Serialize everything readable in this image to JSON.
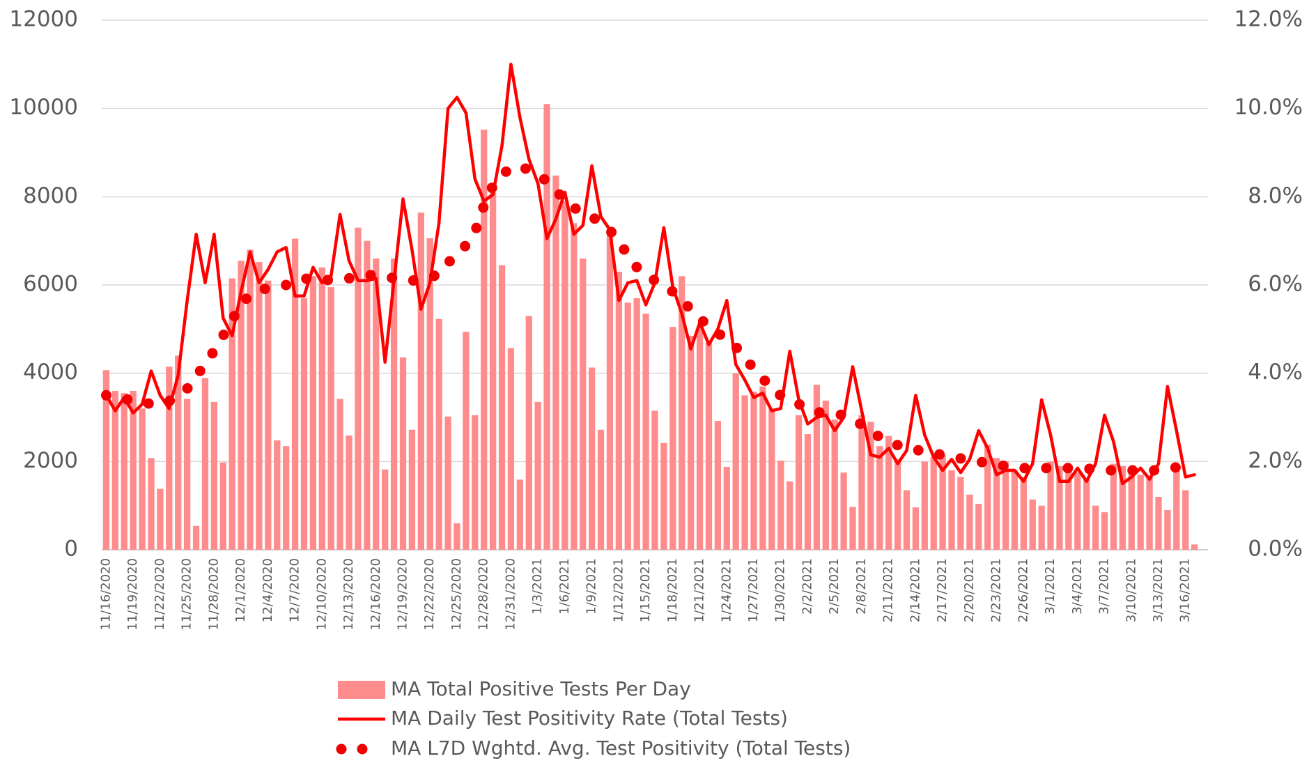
{
  "chart_data": {
    "type": "combo",
    "categories": [
      "11/16/2020",
      null,
      null,
      "11/19/2020",
      null,
      null,
      "11/22/2020",
      null,
      null,
      "11/25/2020",
      null,
      null,
      "11/28/2020",
      null,
      null,
      "12/1/2020",
      null,
      null,
      "12/4/2020",
      null,
      null,
      "12/7/2020",
      null,
      null,
      "12/10/2020",
      null,
      null,
      "12/13/2020",
      null,
      null,
      "12/16/2020",
      null,
      null,
      "12/19/2020",
      null,
      null,
      "12/22/2020",
      null,
      null,
      "12/25/2020",
      null,
      null,
      "12/28/2020",
      null,
      null,
      "12/31/2020",
      null,
      null,
      "1/3/2021",
      null,
      null,
      "1/6/2021",
      null,
      null,
      "1/9/2021",
      null,
      null,
      "1/12/2021",
      null,
      null,
      "1/15/2021",
      null,
      null,
      "1/18/2021",
      null,
      null,
      "1/21/2021",
      null,
      null,
      "1/24/2021",
      null,
      null,
      "1/27/2021",
      null,
      null,
      "1/30/2021",
      null,
      null,
      "2/2/2021",
      null,
      null,
      "2/5/2021",
      null,
      null,
      "2/8/2021",
      null,
      null,
      "2/11/2021",
      null,
      null,
      "2/14/2021",
      null,
      null,
      "2/17/2021",
      null,
      null,
      "2/20/2021",
      null,
      null,
      "2/23/2021",
      null,
      null,
      "2/26/2021",
      null,
      null,
      "3/1/2021",
      null,
      null,
      "3/4/2021",
      null,
      null,
      "3/7/2021",
      null,
      null,
      "3/10/2021",
      null,
      null,
      "3/13/2021",
      null,
      null,
      "3/16/2021",
      null,
      null
    ],
    "series": [
      {
        "name": "MA Total Positive Tests Per Day",
        "type": "bar",
        "color": "#ff8c8c",
        "values": [
          4070,
          3600,
          3550,
          3600,
          3200,
          2080,
          1380,
          4150,
          4400,
          3420,
          540,
          3890,
          3350,
          1980,
          6150,
          6550,
          6800,
          6520,
          6100,
          2480,
          2350,
          7050,
          5700,
          6200,
          6400,
          5950,
          3420,
          2590,
          7300,
          7000,
          6600,
          1820,
          6600,
          4360,
          2720,
          7640,
          7060,
          5230,
          3020,
          600,
          4940,
          3050,
          9520,
          8100,
          6450,
          4570,
          1590,
          5300,
          3350,
          10100,
          8480,
          7900,
          7400,
          6600,
          4130,
          2720,
          7200,
          6300,
          5600,
          5700,
          5350,
          3150,
          2420,
          5050,
          6200,
          4850,
          5050,
          4700,
          2920,
          1880,
          4000,
          3500,
          3580,
          3700,
          3200,
          2020,
          1550,
          3050,
          2620,
          3740,
          3380,
          2950,
          1750,
          970,
          3050,
          2900,
          2350,
          2580,
          2050,
          1350,
          960,
          2000,
          2100,
          2150,
          1800,
          1650,
          1250,
          1040,
          2380,
          2080,
          2000,
          1800,
          1650,
          1140,
          1000,
          2000,
          1900,
          1800,
          1750,
          1600,
          1000,
          850,
          1950,
          1900,
          1800,
          1700,
          1650,
          1200,
          900,
          1800,
          1350,
          120,
          null
        ]
      },
      {
        "name": "MA Daily Test Positivity Rate (Total Tests)",
        "type": "line",
        "axis": "y2",
        "color": "#ff0000",
        "values": [
          3.5,
          3.15,
          3.45,
          3.1,
          3.3,
          4.05,
          3.5,
          3.2,
          3.95,
          5.65,
          7.15,
          6.05,
          7.15,
          5.25,
          4.85,
          5.85,
          6.75,
          6.05,
          6.35,
          6.75,
          6.85,
          5.75,
          5.75,
          6.4,
          6.05,
          6.2,
          7.6,
          6.55,
          6.1,
          6.1,
          6.15,
          4.25,
          6.1,
          7.95,
          6.8,
          5.45,
          6.05,
          7.4,
          10.0,
          10.25,
          9.9,
          8.4,
          7.9,
          8.05,
          9.15,
          11.0,
          9.8,
          8.85,
          8.3,
          7.05,
          7.5,
          8.1,
          7.15,
          7.35,
          8.7,
          7.55,
          7.25,
          5.65,
          6.05,
          6.1,
          5.55,
          6.05,
          7.3,
          5.95,
          5.35,
          4.55,
          5.15,
          4.65,
          5.0,
          5.65,
          4.2,
          3.85,
          3.45,
          3.55,
          3.15,
          3.2,
          4.5,
          3.4,
          2.85,
          3.0,
          3.05,
          2.7,
          3.0,
          4.15,
          3.15,
          2.15,
          2.1,
          2.3,
          1.95,
          2.25,
          3.5,
          2.6,
          2.1,
          1.8,
          2.05,
          1.75,
          2.05,
          2.7,
          2.3,
          1.7,
          1.8,
          1.8,
          1.55,
          1.95,
          3.4,
          2.6,
          1.55,
          1.55,
          1.85,
          1.55,
          1.95,
          3.05,
          2.45,
          1.5,
          1.65,
          1.85,
          1.6,
          1.95,
          3.7,
          2.7,
          1.65,
          1.7,
          null
        ]
      },
      {
        "name": "MA L7D Wghtd. Avg. Test Positivity (Total Tests)",
        "type": "line",
        "axis": "y2",
        "line_style": "dotted",
        "color": "#f00000",
        "values": [
          3.5,
          3.45,
          3.42,
          3.38,
          3.35,
          3.3,
          3.33,
          3.37,
          3.5,
          3.65,
          3.9,
          4.25,
          4.5,
          4.85,
          5.2,
          5.6,
          5.75,
          5.9,
          5.92,
          5.95,
          6.0,
          6.1,
          6.15,
          6.12,
          6.1,
          6.12,
          6.13,
          6.15,
          6.18,
          6.22,
          6.23,
          6.2,
          6.15,
          6.12,
          6.1,
          6.12,
          6.17,
          6.25,
          6.5,
          6.7,
          6.9,
          7.2,
          7.8,
          8.25,
          8.5,
          8.65,
          8.7,
          8.6,
          8.5,
          8.35,
          8.15,
          7.9,
          7.75,
          7.65,
          7.55,
          7.4,
          7.25,
          6.95,
          6.7,
          6.4,
          6.25,
          6.1,
          5.95,
          5.85,
          5.65,
          5.45,
          5.25,
          5.05,
          4.9,
          4.8,
          4.6,
          4.35,
          4.1,
          3.9,
          3.6,
          3.5,
          3.4,
          3.3,
          3.22,
          3.12,
          3.1,
          3.08,
          3.05,
          2.98,
          2.83,
          2.7,
          2.55,
          2.45,
          2.37,
          2.3,
          2.27,
          2.22,
          2.18,
          2.15,
          2.1,
          2.07,
          2.03,
          2.0,
          1.96,
          1.92,
          1.9,
          1.88,
          1.85,
          1.85,
          1.85,
          1.85,
          1.85,
          1.85,
          1.85,
          1.84,
          1.82,
          1.8,
          1.8,
          1.8,
          1.8,
          1.8,
          1.8,
          1.8,
          1.83,
          1.87,
          1.9,
          1.95,
          null
        ]
      }
    ],
    "ylim": [
      0,
      12000
    ],
    "yticks": [
      0,
      2000,
      4000,
      6000,
      8000,
      10000,
      12000
    ],
    "y2lim": [
      0,
      12
    ],
    "y2ticks": [
      {
        "value": 0,
        "label": "0.0%"
      },
      {
        "value": 2,
        "label": "2.0%"
      },
      {
        "value": 4,
        "label": "4.0%"
      },
      {
        "value": 6,
        "label": "6.0%"
      },
      {
        "value": 8,
        "label": "8.0%"
      },
      {
        "value": 10,
        "label": "10.0%"
      },
      {
        "value": 12,
        "label": "12.0%"
      }
    ],
    "grid": true,
    "legend": "bottom"
  }
}
